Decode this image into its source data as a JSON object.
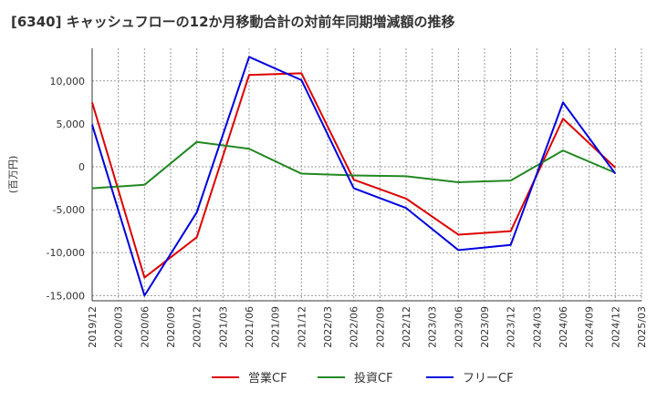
{
  "chart_data": {
    "type": "line",
    "title": "[6340]  キャッシュフローの12か月移動合計の対前年同期増減額の推移",
    "ylabel": "(百万円)",
    "xlabel": "",
    "x_ticks": [
      "2019/12",
      "2020/03",
      "2020/06",
      "2020/09",
      "2020/12",
      "2021/03",
      "2021/06",
      "2021/09",
      "2021/12",
      "2022/03",
      "2022/06",
      "2022/09",
      "2022/12",
      "2023/03",
      "2023/06",
      "2023/09",
      "2023/12",
      "2024/03",
      "2024/06",
      "2024/09",
      "2024/12",
      "2025/03"
    ],
    "y_ticks": [
      10000,
      5000,
      0,
      -5000,
      -10000,
      -15000
    ],
    "y_tick_labels": [
      "10,000",
      "5,000",
      "0",
      "-5,000",
      "-10,000",
      "-15,000"
    ],
    "ylim": [
      -15600,
      13800
    ],
    "grid": true,
    "legend_position": "bottom-center",
    "series": [
      {
        "name": "営業CF",
        "color": "#dd0000",
        "x": [
          "2019/12",
          "2020/06",
          "2020/12",
          "2021/06",
          "2021/12",
          "2022/06",
          "2022/12",
          "2023/06",
          "2023/12",
          "2024/06",
          "2024/12"
        ],
        "values": [
          7500,
          -12900,
          -8200,
          10700,
          10900,
          -1500,
          -3700,
          -7900,
          -7500,
          5600,
          -100
        ]
      },
      {
        "name": "投資CF",
        "color": "#228822",
        "x": [
          "2019/12",
          "2020/06",
          "2020/12",
          "2021/06",
          "2021/12",
          "2022/06",
          "2022/12",
          "2023/06",
          "2023/12",
          "2024/06",
          "2024/12"
        ],
        "values": [
          -2500,
          -2100,
          2900,
          2100,
          -800,
          -1000,
          -1100,
          -1800,
          -1600,
          1900,
          -700
        ]
      },
      {
        "name": "フリーCF",
        "color": "#0000dd",
        "x": [
          "2019/12",
          "2020/06",
          "2020/12",
          "2021/06",
          "2021/12",
          "2022/06",
          "2022/12",
          "2023/06",
          "2023/12",
          "2024/06",
          "2024/12"
        ],
        "values": [
          4900,
          -15000,
          -5300,
          12800,
          10100,
          -2500,
          -4800,
          -9700,
          -9100,
          7500,
          -800
        ]
      }
    ]
  }
}
